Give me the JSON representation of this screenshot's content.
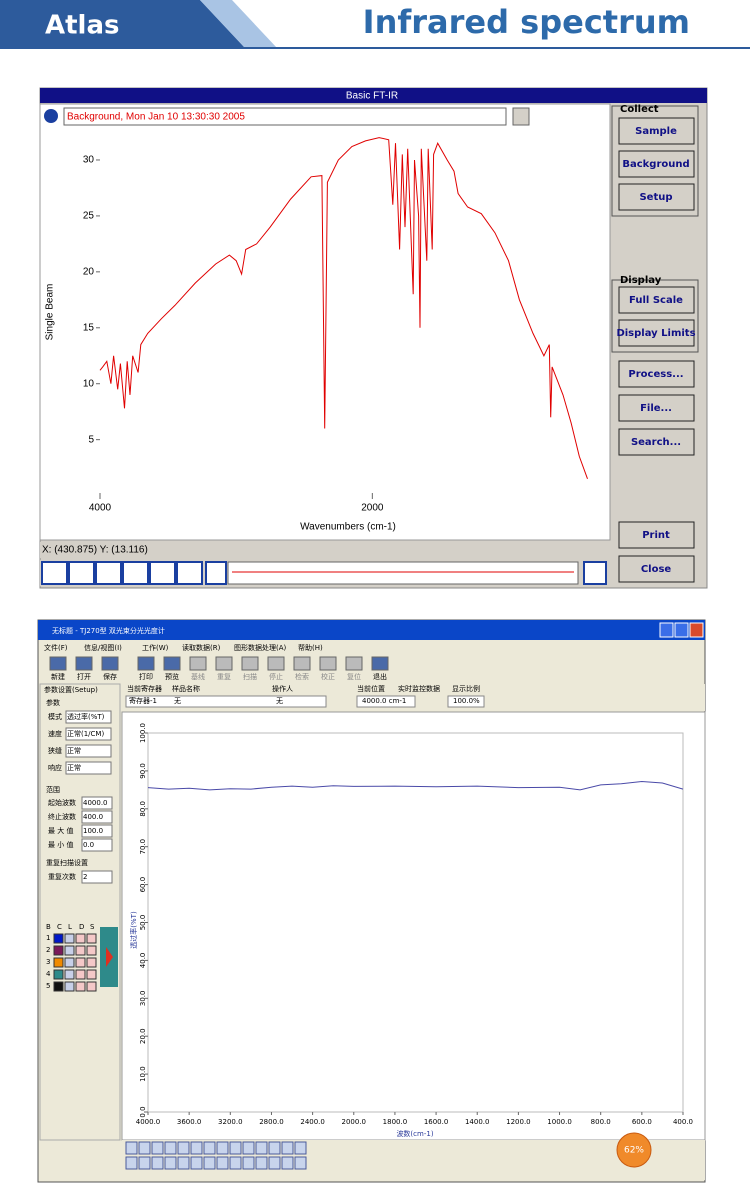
{
  "header": {
    "brand": "Atlas",
    "title": "Infrared spectrum"
  },
  "ftir": {
    "window_title": "Basic FT-IR",
    "file_label": "Background, Mon Jan 10 13:30:30 2005",
    "plot": {
      "type": "line",
      "ylabel": "Single Beam",
      "xlabel": "Wavenumbers (cm-1)",
      "color": "#e00000",
      "xlim": [
        4000,
        350
      ],
      "ylim": [
        0.5,
        32.5
      ],
      "xticks": [
        4000,
        2000
      ],
      "yticks": [
        5,
        10,
        15,
        20,
        25,
        30
      ],
      "x": [
        4000,
        3980,
        3950,
        3920,
        3900,
        3870,
        3850,
        3820,
        3800,
        3780,
        3760,
        3720,
        3700,
        3650,
        3550,
        3450,
        3300,
        3150,
        3050,
        3000,
        2960,
        2930,
        2850,
        2750,
        2600,
        2450,
        2370,
        2350,
        2330,
        2250,
        2150,
        2050,
        1950,
        1880,
        1850,
        1830,
        1800,
        1780,
        1760,
        1740,
        1700,
        1690,
        1660,
        1650,
        1640,
        1600,
        1590,
        1560,
        1550,
        1520,
        1450,
        1400,
        1370,
        1300,
        1200,
        1100,
        1000,
        920,
        820,
        740,
        700,
        690,
        680,
        600,
        540,
        480,
        420
      ],
      "values": [
        11.2,
        11.5,
        12.0,
        10.0,
        12.5,
        9.5,
        11.8,
        7.8,
        12.0,
        9.0,
        12.5,
        11.0,
        13.5,
        14.5,
        15.8,
        17.0,
        19.0,
        20.7,
        21.5,
        21.0,
        19.8,
        22.0,
        22.5,
        24.0,
        26.5,
        28.5,
        28.6,
        6.0,
        28.0,
        30.0,
        31.2,
        31.7,
        32.0,
        31.8,
        26.0,
        31.5,
        22.0,
        30.5,
        24.0,
        31.0,
        18.0,
        30.0,
        25.0,
        15.0,
        31.0,
        21.0,
        31.0,
        22.0,
        30.5,
        31.5,
        30.0,
        29.0,
        27.0,
        25.8,
        25.2,
        23.5,
        21.0,
        17.5,
        14.5,
        12.5,
        13.5,
        7.0,
        11.5,
        9.0,
        6.5,
        3.5,
        1.5
      ]
    },
    "status": "X: (430.875) Y: (13.116)",
    "collect": {
      "title": "Collect",
      "buttons": [
        "Sample",
        "Background",
        "Setup"
      ]
    },
    "display": {
      "title": "Display",
      "buttons": [
        "Full Scale",
        "Display Limits"
      ]
    },
    "actions": [
      "Process...",
      "File...",
      "Search..."
    ],
    "bottom_buttons": [
      "Print",
      "Close"
    ]
  },
  "tj": {
    "window_title": "无标题 - TJ270型 双光束分光光度计",
    "menu": [
      "文件(F)",
      "信息/视图(I)",
      "工作(W)",
      "读取数据(R)",
      "图形数据处理(A)",
      "帮助(H)"
    ],
    "toolbar": [
      "新建",
      "打开",
      "保存",
      "打印",
      "预览",
      "基线",
      "重复",
      "扫描",
      "停止",
      "检索",
      "校正",
      "复位",
      "退出"
    ],
    "setup_tab": "参数设置(Setup)",
    "params": {
      "title": "参数",
      "rows": [
        [
          "模式",
          "透过率(%T)"
        ],
        [
          "速度",
          "正常(1/CM)"
        ],
        [
          "狭缝",
          "正常"
        ],
        [
          "响应",
          "正常"
        ]
      ]
    },
    "range": {
      "title": "范围",
      "rows": [
        [
          "起始波数",
          "4000.0"
        ],
        [
          "终止波数",
          "400.0"
        ],
        [
          "最 大 值",
          "100.0"
        ],
        [
          "最 小 值",
          "0.0"
        ]
      ]
    },
    "repeat": {
      "title": "重复扫描设置",
      "rows": [
        [
          "重复次数",
          "2"
        ]
      ]
    },
    "legend_header": [
      "B",
      "C",
      "L",
      "D",
      "S"
    ],
    "registers": [
      {
        "name": "1",
        "color": "#0018c8"
      },
      {
        "name": "2",
        "color": "#7a1a5a"
      },
      {
        "name": "3",
        "color": "#f08a00"
      },
      {
        "name": "4",
        "color": "#2e8a8a"
      },
      {
        "name": "5",
        "color": "#101010"
      }
    ],
    "info_headers": [
      "当前寄存器",
      "样品名称",
      "操作人",
      "当前位置",
      "实时监控数据",
      "显示比例"
    ],
    "register": "寄存器-1",
    "sample": "无",
    "operator": "无",
    "position": "4000.0 cm-1",
    "scale": "100.0%",
    "plot": {
      "type": "line",
      "ylabel": "透过率(%T)",
      "xlabel": "波数(cm-1)",
      "color": "#4a4aa8",
      "xlim": [
        4000,
        400
      ],
      "ylim": [
        0,
        100
      ],
      "xticks": [
        {
          "value": 4000,
          "label": "4000.0"
        },
        {
          "value": 3600,
          "label": "3600.0"
        },
        {
          "value": 3200,
          "label": "3200.0"
        },
        {
          "value": 2800,
          "label": "2800.0"
        },
        {
          "value": 2400,
          "label": "2400.0"
        },
        {
          "value": 2000,
          "label": "2000.0"
        },
        {
          "value": 1800,
          "label": "1800.0"
        },
        {
          "value": 1600,
          "label": "1600.0"
        },
        {
          "value": 1400,
          "label": "1400.0"
        },
        {
          "value": 1200,
          "label": "1200.0"
        },
        {
          "value": 1000,
          "label": "1000.0"
        },
        {
          "value": 800,
          "label": "800.0"
        },
        {
          "value": 600,
          "label": "600.0"
        },
        {
          "value": 400,
          "label": "400.0"
        }
      ],
      "yticks": [
        {
          "value": 0,
          "label": "0.0"
        },
        {
          "value": 10,
          "label": "10.0"
        },
        {
          "value": 20,
          "label": "20.0"
        },
        {
          "value": 30,
          "label": "30.0"
        },
        {
          "value": 40,
          "label": "40.0"
        },
        {
          "value": 50,
          "label": "50.0"
        },
        {
          "value": 60,
          "label": "60.0"
        },
        {
          "value": 70,
          "label": "70.0"
        },
        {
          "value": 80,
          "label": "80.0"
        },
        {
          "value": 90,
          "label": "90.0"
        },
        {
          "value": 100,
          "label": "100.0"
        }
      ],
      "x": [
        4000,
        3800,
        3600,
        3400,
        3200,
        3000,
        2800,
        2600,
        2400,
        2200,
        2000,
        1800,
        1600,
        1400,
        1200,
        1000,
        900,
        800,
        700,
        600,
        500,
        400
      ],
      "values": [
        85.6,
        85.2,
        85.4,
        85.0,
        85.3,
        85.2,
        85.7,
        86.0,
        85.7,
        86.1,
        85.9,
        86.0,
        85.8,
        86.0,
        85.6,
        85.7,
        85.0,
        86.3,
        86.6,
        87.2,
        86.8,
        85.2
      ]
    },
    "tray": {
      "battery": "62%"
    }
  }
}
